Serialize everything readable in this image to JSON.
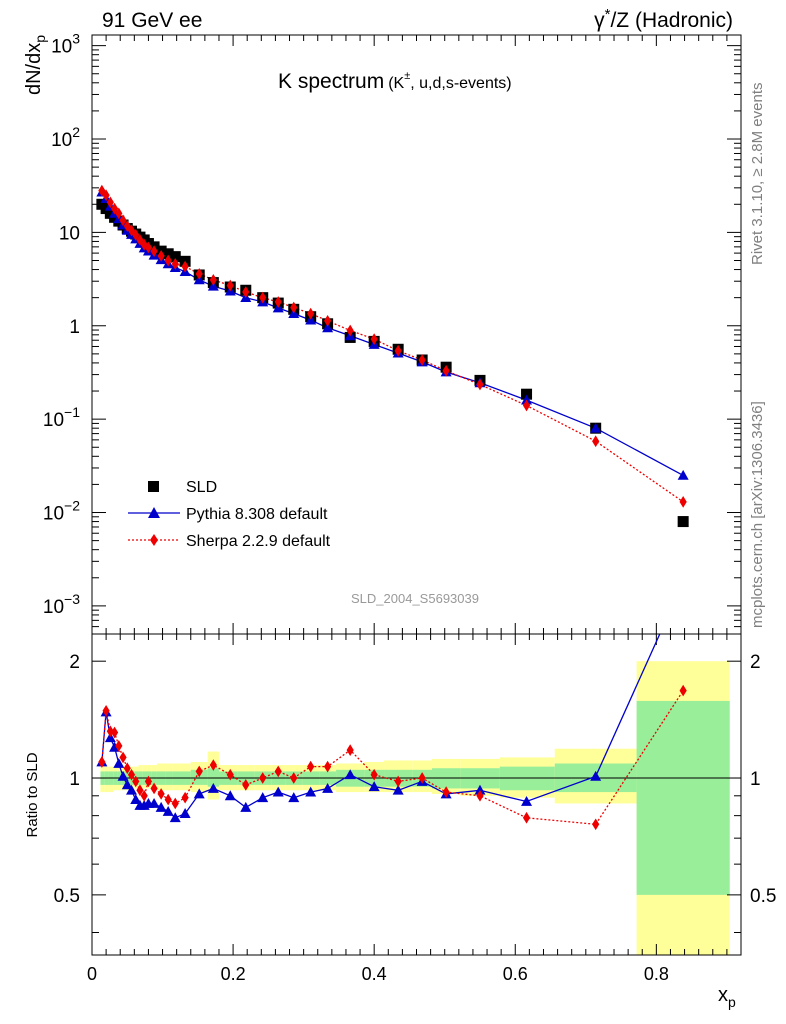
{
  "header": {
    "left": "91 GeV ee",
    "right_parts": [
      "γ",
      "*",
      "/Z (Hadronic)"
    ]
  },
  "side_labels": {
    "rivet_parts": [
      "Rivet 3.1.10, ≥ 2.8M events"
    ],
    "mcplots": "mcplots.cern.ch [arXiv:1306.3436]"
  },
  "main_title": {
    "text": "K spectrum",
    "sub_parts": [
      "(K",
      "±",
      ", u,d,s-events)"
    ]
  },
  "watermark": "SLD_2004_S5693039",
  "axes": {
    "ylabel_parts": [
      "dN/dx",
      "p"
    ],
    "xlabel_parts": [
      "x",
      "p"
    ],
    "ratio_ylabel": "Ratio to SLD"
  },
  "legend": {
    "placement": "middle-left",
    "items": [
      {
        "label": "SLD",
        "marker": "square",
        "color": "#000000"
      },
      {
        "label": "Pythia 8.308 default",
        "marker": "triangle",
        "color": "#0000cc",
        "line": "solid"
      },
      {
        "label": "Sherpa 2.2.9 default",
        "marker": "diamond",
        "color": "#ee0000",
        "line": "dotted"
      }
    ]
  },
  "colors": {
    "pythia": "#0000cc",
    "sherpa": "#ee0000",
    "data": "#000000",
    "band_inner": "#99ee99",
    "band_outer": "#ffff99"
  },
  "chart_data": {
    "type": "scatter",
    "x_range": [
      0,
      0.92
    ],
    "y_range_main": [
      0.0005,
      1300
    ],
    "y_scale_main": "log",
    "y_range_ratio": [
      0.35,
      2.35
    ],
    "y_scale_ratio": "log",
    "x_ticks": [
      {
        "v": 0,
        "label": "0"
      },
      {
        "v": 0.2,
        "label": "0.2"
      },
      {
        "v": 0.4,
        "label": "0.4"
      },
      {
        "v": 0.6,
        "label": "0.6"
      },
      {
        "v": 0.8,
        "label": "0.8"
      }
    ],
    "y_ticks_main": [
      {
        "v": 1000,
        "base": "10",
        "exp": "3"
      },
      {
        "v": 100,
        "base": "10",
        "exp": "2"
      },
      {
        "v": 10,
        "base": "10",
        "exp": ""
      },
      {
        "v": 1,
        "base": "1",
        "exp": ""
      },
      {
        "v": 0.1,
        "base": "10",
        "exp": "−1"
      },
      {
        "v": 0.01,
        "base": "10",
        "exp": "−2"
      },
      {
        "v": 0.001,
        "base": "10",
        "exp": "−3"
      }
    ],
    "y_ticks_ratio": [
      {
        "v": 2,
        "label": "2"
      },
      {
        "v": 1,
        "label": "1"
      },
      {
        "v": 0.5,
        "label": "0.5"
      }
    ],
    "x": [
      0.014,
      0.02,
      0.026,
      0.032,
      0.038,
      0.044,
      0.05,
      0.056,
      0.062,
      0.068,
      0.074,
      0.08,
      0.088,
      0.098,
      0.108,
      0.118,
      0.132,
      0.152,
      0.172,
      0.196,
      0.218,
      0.242,
      0.264,
      0.286,
      0.31,
      0.334,
      0.366,
      0.4,
      0.434,
      0.468,
      0.502,
      0.55,
      0.616,
      0.714,
      0.838
    ],
    "series": [
      {
        "name": "SLD",
        "values": [
          20,
          18,
          16,
          14.5,
          13.2,
          12,
          11,
          10.3,
          9.6,
          8.9,
          8.3,
          7.6,
          7.0,
          6.3,
          5.9,
          5.5,
          4.9,
          3.5,
          2.9,
          2.6,
          2.4,
          2.0,
          1.75,
          1.5,
          1.25,
          1.05,
          0.75,
          0.68,
          0.56,
          0.43,
          0.36,
          0.26,
          0.185,
          0.08,
          0.008
        ]
      },
      {
        "name": "Pythia 8.308 default",
        "values": [
          27,
          23,
          19,
          16,
          14,
          12,
          10.5,
          9.5,
          8.5,
          7.6,
          6.8,
          6.3,
          5.7,
          5.1,
          4.6,
          4.2,
          3.8,
          3.1,
          2.65,
          2.35,
          2.0,
          1.8,
          1.55,
          1.35,
          1.15,
          0.95,
          0.78,
          0.63,
          0.51,
          0.41,
          0.32,
          0.245,
          0.16,
          0.08,
          0.025
        ]
      },
      {
        "name": "Sherpa 2.2.9 default",
        "values": [
          28,
          25,
          21,
          18,
          16,
          13.5,
          11.7,
          10.5,
          9.4,
          8.3,
          7.4,
          6.9,
          6.3,
          5.6,
          5.0,
          4.6,
          4.3,
          3.6,
          3.1,
          2.7,
          2.3,
          2.0,
          1.8,
          1.57,
          1.35,
          1.13,
          0.89,
          0.72,
          0.54,
          0.43,
          0.33,
          0.235,
          0.14,
          0.058,
          0.013
        ]
      }
    ],
    "ratios": [
      {
        "name": "Pythia 8.308 default",
        "values": [
          1.1,
          1.48,
          1.27,
          1.2,
          1.09,
          1.01,
          0.96,
          0.93,
          0.88,
          0.85,
          0.85,
          0.86,
          0.86,
          0.84,
          0.82,
          0.79,
          0.81,
          0.91,
          0.94,
          0.9,
          0.84,
          0.89,
          0.92,
          0.89,
          0.92,
          0.94,
          1.02,
          0.95,
          0.93,
          0.98,
          0.91,
          0.93,
          0.87,
          1.01,
          3.2
        ]
      },
      {
        "name": "Sherpa 2.2.9 default",
        "values": [
          1.1,
          1.49,
          1.32,
          1.31,
          1.21,
          1.13,
          1.06,
          1.02,
          0.98,
          0.93,
          0.9,
          0.98,
          0.94,
          0.91,
          0.88,
          0.86,
          0.89,
          1.04,
          1.08,
          1.02,
          0.96,
          1.0,
          1.04,
          1.0,
          1.07,
          1.07,
          1.18,
          1.02,
          0.98,
          1.0,
          0.92,
          0.9,
          0.79,
          0.76,
          1.68
        ]
      }
    ],
    "band_edges": [
      0.012,
      0.018,
      0.024,
      0.03,
      0.036,
      0.042,
      0.048,
      0.054,
      0.06,
      0.066,
      0.072,
      0.078,
      0.084,
      0.092,
      0.104,
      0.114,
      0.124,
      0.14,
      0.164,
      0.18,
      0.206,
      0.23,
      0.254,
      0.274,
      0.298,
      0.322,
      0.346,
      0.386,
      0.414,
      0.454,
      0.482,
      0.522,
      0.578,
      0.656,
      0.772,
      0.904
    ],
    "band_inner": [
      [
        0.96,
        1.04
      ],
      [
        0.96,
        1.04
      ],
      [
        0.96,
        1.04
      ],
      [
        0.96,
        1.04
      ],
      [
        0.96,
        1.04
      ],
      [
        0.96,
        1.04
      ],
      [
        0.96,
        1.04
      ],
      [
        0.96,
        1.04
      ],
      [
        0.96,
        1.04
      ],
      [
        0.96,
        1.04
      ],
      [
        0.96,
        1.04
      ],
      [
        0.96,
        1.04
      ],
      [
        0.96,
        1.04
      ],
      [
        0.96,
        1.04
      ],
      [
        0.96,
        1.04
      ],
      [
        0.96,
        1.04
      ],
      [
        0.96,
        1.04
      ],
      [
        0.96,
        1.05
      ],
      [
        0.95,
        1.06
      ],
      [
        0.96,
        1.04
      ],
      [
        0.96,
        1.04
      ],
      [
        0.96,
        1.04
      ],
      [
        0.96,
        1.04
      ],
      [
        0.96,
        1.04
      ],
      [
        0.96,
        1.04
      ],
      [
        0.96,
        1.04
      ],
      [
        0.95,
        1.05
      ],
      [
        0.95,
        1.05
      ],
      [
        0.95,
        1.05
      ],
      [
        0.95,
        1.05
      ],
      [
        0.94,
        1.06
      ],
      [
        0.94,
        1.06
      ],
      [
        0.93,
        1.07
      ],
      [
        0.92,
        1.09
      ],
      [
        0.5,
        1.58
      ]
    ],
    "band_outer": [
      [
        0.92,
        1.07
      ],
      [
        0.92,
        1.07
      ],
      [
        0.92,
        1.07
      ],
      [
        0.93,
        1.07
      ],
      [
        0.93,
        1.07
      ],
      [
        0.93,
        1.07
      ],
      [
        0.93,
        1.07
      ],
      [
        0.94,
        1.07
      ],
      [
        0.94,
        1.07
      ],
      [
        0.94,
        1.08
      ],
      [
        0.94,
        1.08
      ],
      [
        0.94,
        1.08
      ],
      [
        0.94,
        1.08
      ],
      [
        0.93,
        1.09
      ],
      [
        0.93,
        1.09
      ],
      [
        0.93,
        1.09
      ],
      [
        0.93,
        1.09
      ],
      [
        0.92,
        1.1
      ],
      [
        0.88,
        1.17
      ],
      [
        0.93,
        1.08
      ],
      [
        0.93,
        1.08
      ],
      [
        0.93,
        1.08
      ],
      [
        0.93,
        1.08
      ],
      [
        0.93,
        1.08
      ],
      [
        0.93,
        1.08
      ],
      [
        0.93,
        1.08
      ],
      [
        0.92,
        1.09
      ],
      [
        0.92,
        1.1
      ],
      [
        0.92,
        1.11
      ],
      [
        0.92,
        1.11
      ],
      [
        0.91,
        1.12
      ],
      [
        0.9,
        1.12
      ],
      [
        0.89,
        1.13
      ],
      [
        0.86,
        1.19
      ],
      [
        0.33,
        2.0
      ]
    ]
  }
}
